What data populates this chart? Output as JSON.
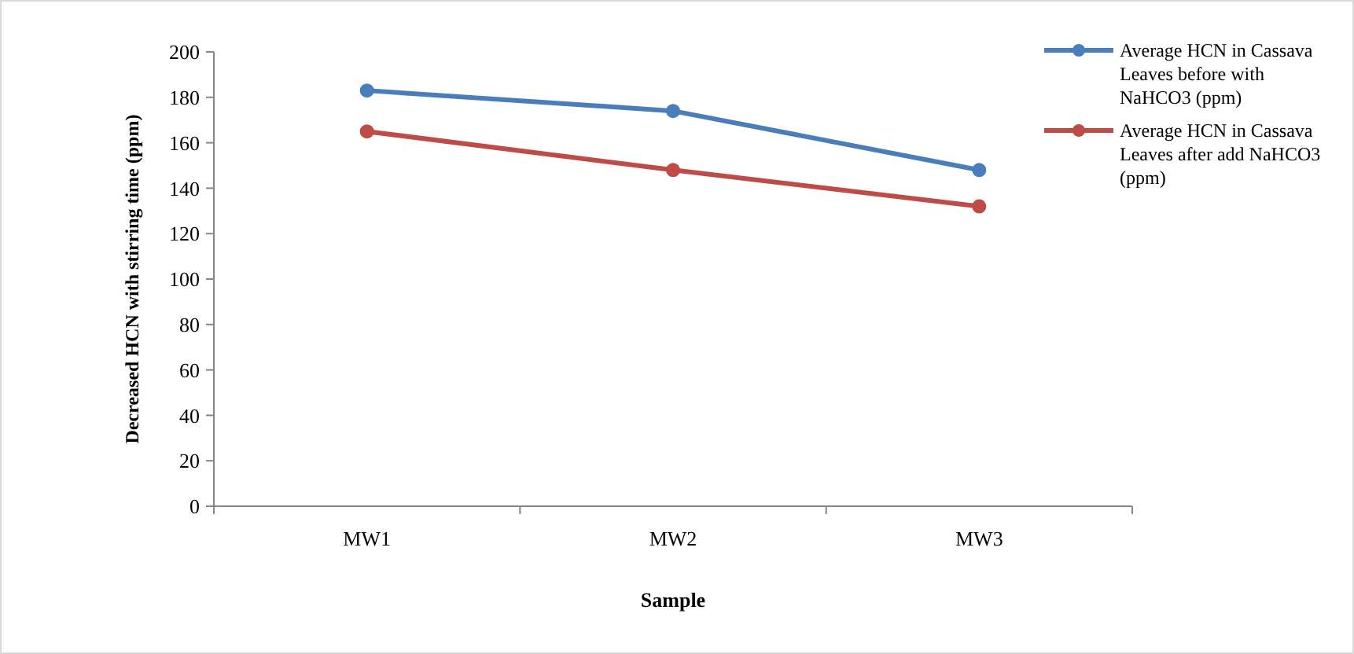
{
  "chart_data": {
    "type": "line",
    "xlabel": "Sample",
    "ylabel": "Decreased HCN with stirring time (ppm)",
    "categories": [
      "MW1",
      "MW2",
      "MW3"
    ],
    "series": [
      {
        "name": "Average HCN in Cassava Leaves before with NaHCO3 (ppm)",
        "color": "#4a7ebb",
        "values": [
          183,
          174,
          148
        ]
      },
      {
        "name": "Average HCN in Cassava Leaves after add NaHCO3 (ppm)",
        "color": "#be4b48",
        "values": [
          165,
          148,
          132
        ]
      }
    ],
    "ylim": [
      0,
      200
    ],
    "yticks": [
      0,
      20,
      40,
      60,
      80,
      100,
      120,
      140,
      160,
      180,
      200
    ],
    "grid": false,
    "legend": "right",
    "marker": "circle",
    "line_style": "solid"
  }
}
